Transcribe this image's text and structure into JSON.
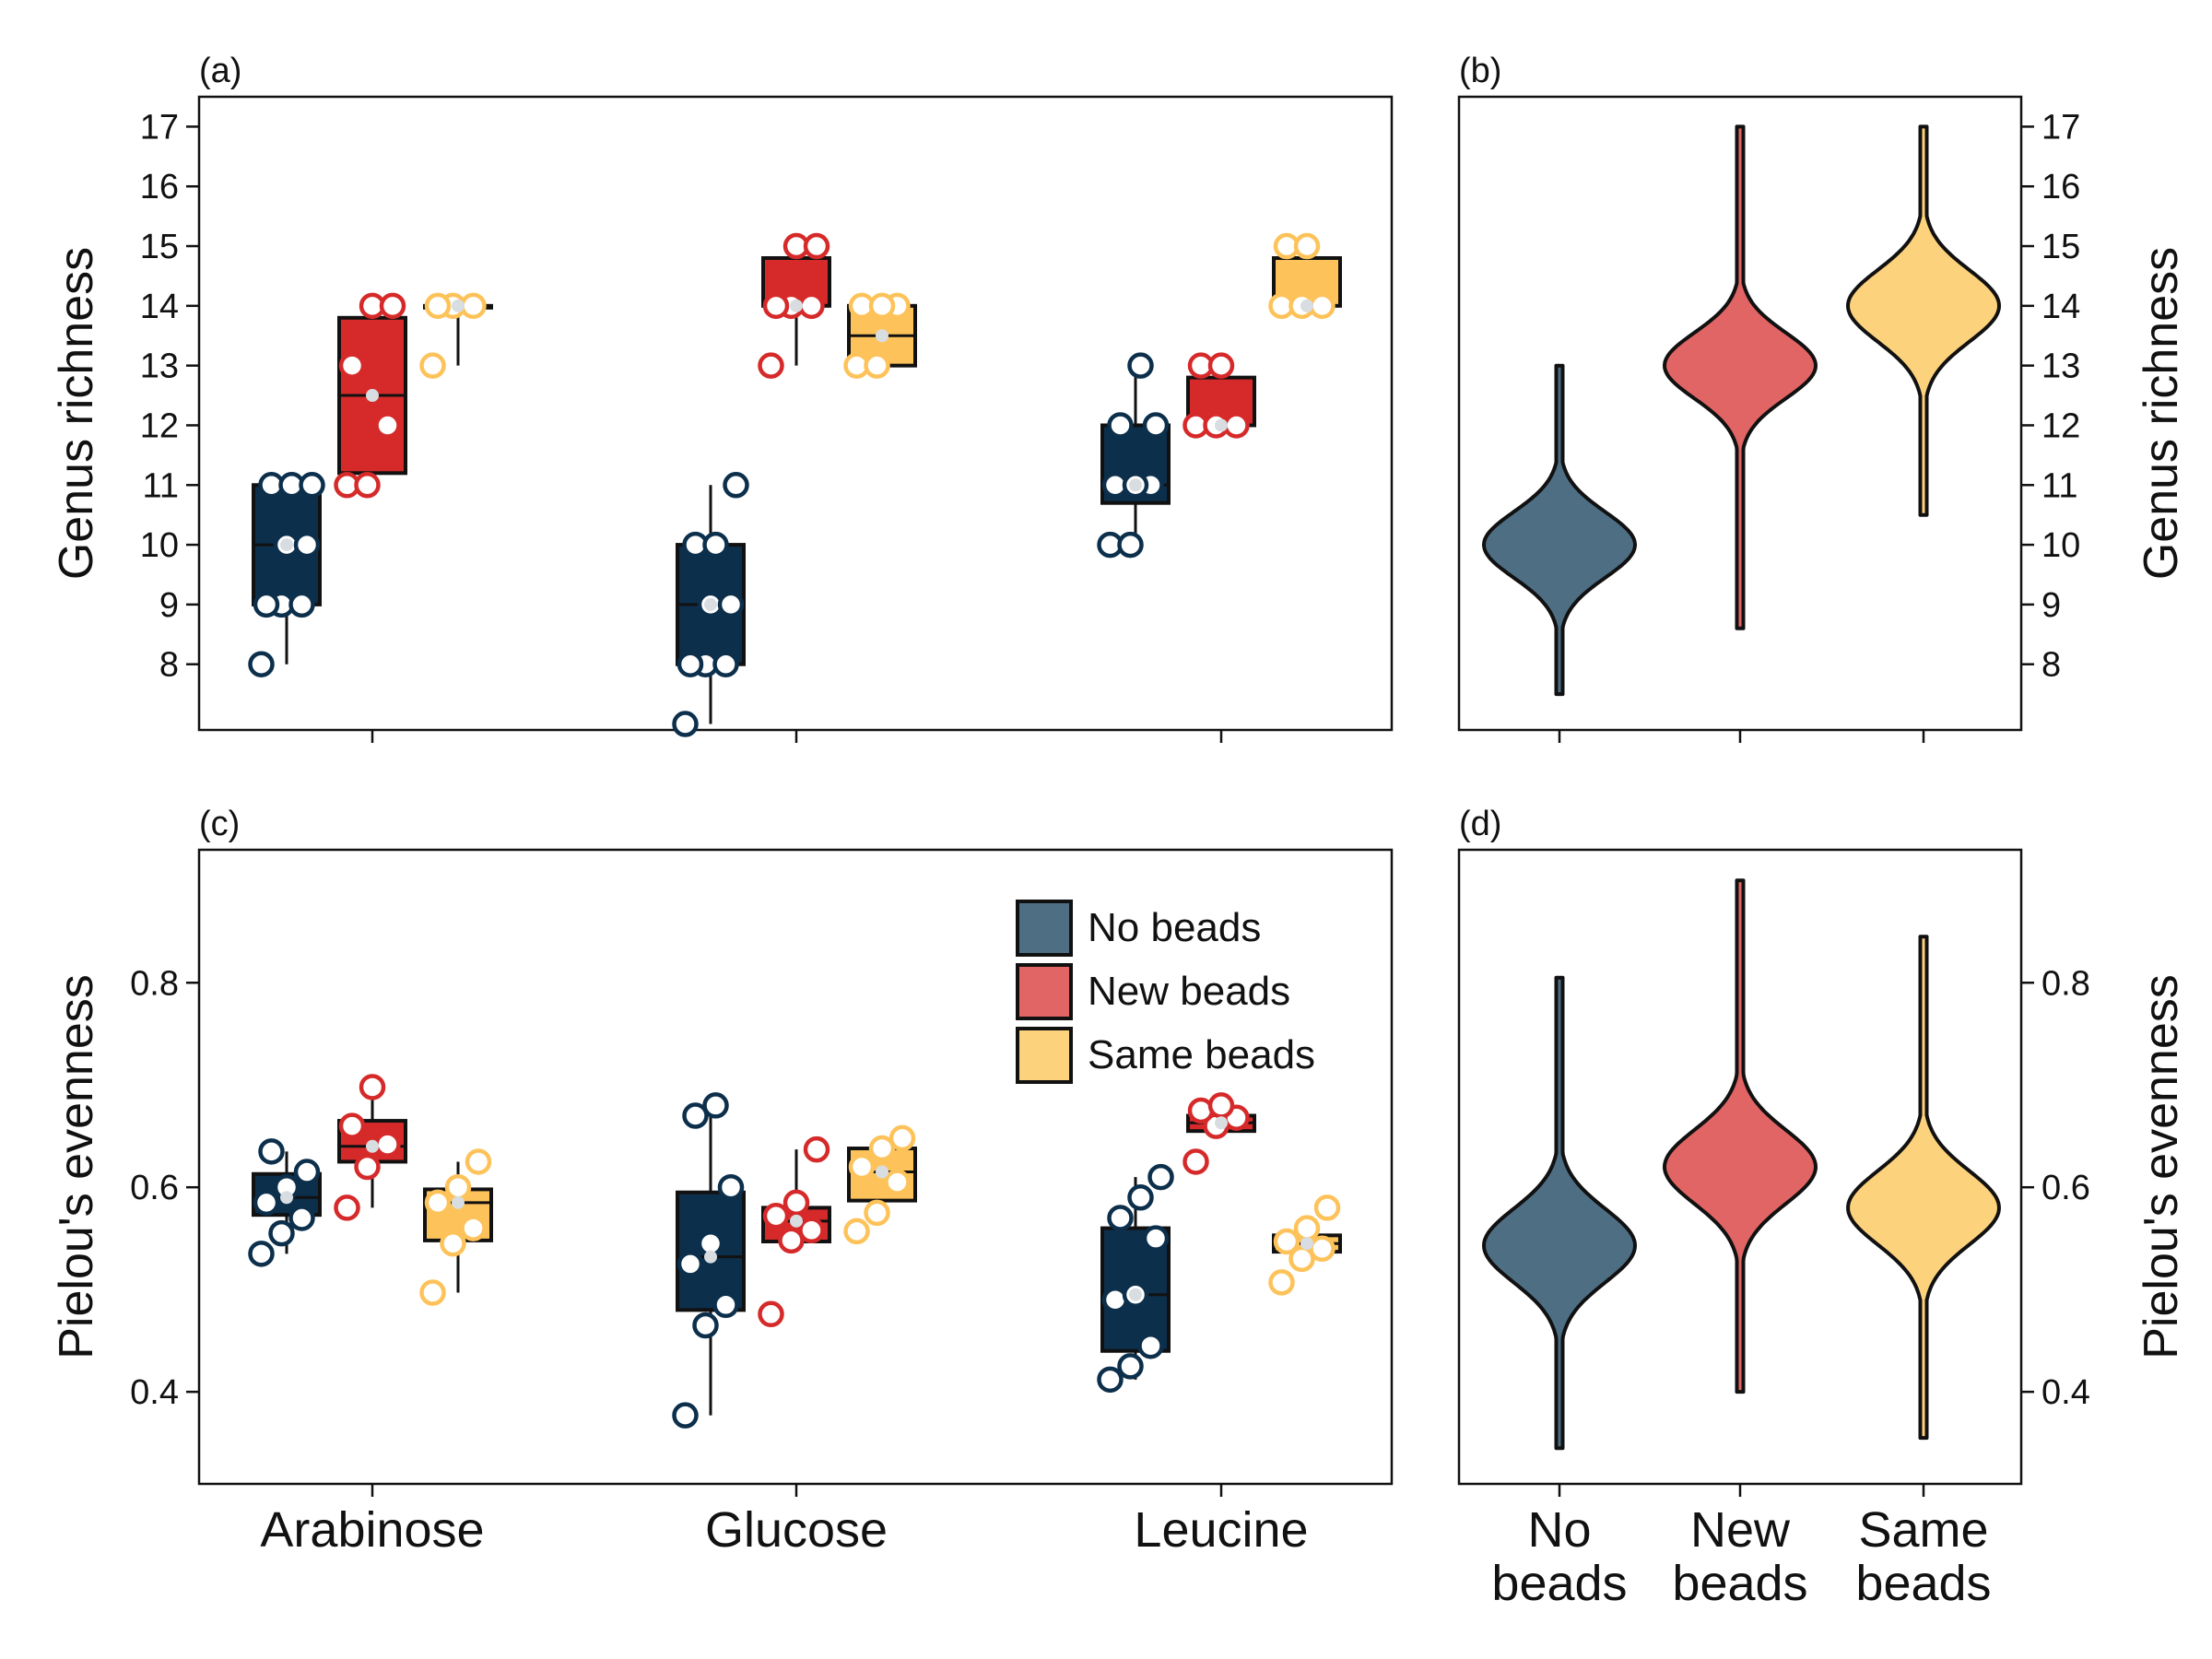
{
  "colors": {
    "no_beads": "#0c2f4c",
    "new_beads": "#d62a2a",
    "same_beads": "#fdc35a",
    "no_beads_violin": "#4e6e84",
    "new_beads_violin": "#e26565",
    "same_beads_violin": "#fdd27c",
    "median_point_fill": "#d8dde2"
  },
  "legend": {
    "entries": [
      "No beads",
      "New beads",
      "Same beads"
    ],
    "position": "upper-right of panel (c)"
  },
  "chart_data": [
    {
      "panel": "(a)",
      "type": "box",
      "ylabel": "Genus richness",
      "ylim": [
        6.9,
        17.5
      ],
      "yticks": [
        8,
        9,
        10,
        11,
        12,
        13,
        14,
        15,
        16,
        17
      ],
      "categories": [
        "Arabinose",
        "Glucose",
        "Leucine"
      ],
      "series": [
        {
          "name": "No beads",
          "boxes": [
            {
              "q1": 9,
              "median": 10,
              "q3": 11,
              "whisker_low": 8,
              "whisker_high": 11,
              "points": [
                8,
                9,
                9,
                9,
                10,
                10,
                11,
                11,
                11
              ]
            },
            {
              "q1": 8,
              "median": 9,
              "q3": 10,
              "whisker_low": 7,
              "whisker_high": 11,
              "points": [
                7,
                8,
                8,
                8,
                9,
                9,
                10,
                10,
                11
              ]
            },
            {
              "q1": 10.7,
              "median": 11,
              "q3": 12,
              "whisker_low": 10,
              "whisker_high": 13,
              "points": [
                10,
                10,
                11,
                11,
                11,
                12,
                12,
                13
              ]
            }
          ]
        },
        {
          "name": "New beads",
          "boxes": [
            {
              "q1": 11.2,
              "median": 12.5,
              "q3": 13.8,
              "whisker_low": 11,
              "whisker_high": 14,
              "points": [
                11,
                11,
                12,
                13,
                14,
                14
              ]
            },
            {
              "q1": 14,
              "median": 14,
              "q3": 14.8,
              "whisker_low": 13,
              "whisker_high": 15,
              "points": [
                13,
                14,
                14,
                14,
                15,
                15
              ]
            },
            {
              "q1": 12,
              "median": 12,
              "q3": 12.8,
              "whisker_low": 12,
              "whisker_high": 13,
              "points": [
                12,
                12,
                12,
                13,
                13
              ]
            }
          ]
        },
        {
          "name": "Same beads",
          "boxes": [
            {
              "q1": 14,
              "median": 14,
              "q3": 14,
              "whisker_low": 13,
              "whisker_high": 14,
              "points": [
                13,
                14,
                14,
                14
              ]
            },
            {
              "q1": 13,
              "median": 13.5,
              "q3": 14,
              "whisker_low": 13,
              "whisker_high": 14,
              "points": [
                13,
                13,
                14,
                14,
                14
              ]
            },
            {
              "q1": 14,
              "median": 14,
              "q3": 14.8,
              "whisker_low": 14,
              "whisker_high": 15,
              "points": [
                14,
                14,
                14,
                15,
                15
              ]
            }
          ]
        }
      ]
    },
    {
      "panel": "(b)",
      "type": "violin",
      "ylabel": "Genus richness",
      "ylim": [
        6.9,
        17.5
      ],
      "yticks": [
        8,
        9,
        10,
        11,
        12,
        13,
        14,
        15,
        16,
        17
      ],
      "categories": [
        "No beads",
        "New beads",
        "Same beads"
      ],
      "series": [
        {
          "name": "No beads",
          "center": 10,
          "spread": 0.55,
          "min": 7.5,
          "max": 13
        },
        {
          "name": "New beads",
          "center": 13,
          "spread": 0.55,
          "min": 8.6,
          "max": 17
        },
        {
          "name": "Same beads",
          "center": 14,
          "spread": 0.6,
          "min": 10.5,
          "max": 17
        }
      ]
    },
    {
      "panel": "(c)",
      "type": "box",
      "ylabel": "Pielou's evenness",
      "ylim": [
        0.31,
        0.93
      ],
      "yticks": [
        0.4,
        0.6,
        0.8
      ],
      "categories": [
        "Arabinose",
        "Glucose",
        "Leucine"
      ],
      "series": [
        {
          "name": "No beads",
          "boxes": [
            {
              "q1": 0.573,
              "median": 0.59,
              "q3": 0.613,
              "whisker_low": 0.535,
              "whisker_high": 0.635,
              "points": [
                0.535,
                0.555,
                0.57,
                0.585,
                0.6,
                0.615,
                0.635
              ]
            },
            {
              "q1": 0.48,
              "median": 0.532,
              "q3": 0.595,
              "whisker_low": 0.377,
              "whisker_high": 0.68,
              "points": [
                0.377,
                0.465,
                0.485,
                0.525,
                0.545,
                0.6,
                0.67,
                0.68
              ]
            },
            {
              "q1": 0.44,
              "median": 0.495,
              "q3": 0.56,
              "whisker_low": 0.412,
              "whisker_high": 0.61,
              "points": [
                0.412,
                0.425,
                0.445,
                0.49,
                0.495,
                0.55,
                0.57,
                0.59,
                0.61
              ]
            }
          ]
        },
        {
          "name": "New beads",
          "boxes": [
            {
              "q1": 0.625,
              "median": 0.64,
              "q3": 0.665,
              "whisker_low": 0.58,
              "whisker_high": 0.698,
              "points": [
                0.58,
                0.62,
                0.642,
                0.66,
                0.698
              ]
            },
            {
              "q1": 0.547,
              "median": 0.567,
              "q3": 0.58,
              "whisker_low": 0.547,
              "whisker_high": 0.637,
              "points": [
                0.476,
                0.548,
                0.558,
                0.572,
                0.585,
                0.637
              ]
            },
            {
              "q1": 0.655,
              "median": 0.663,
              "q3": 0.67,
              "whisker_low": 0.655,
              "whisker_high": 0.68,
              "points": [
                0.625,
                0.66,
                0.668,
                0.675,
                0.68
              ]
            }
          ]
        },
        {
          "name": "Same beads",
          "boxes": [
            {
              "q1": 0.548,
              "median": 0.585,
              "q3": 0.598,
              "whisker_low": 0.497,
              "whisker_high": 0.625,
              "points": [
                0.497,
                0.545,
                0.56,
                0.585,
                0.6,
                0.625
              ]
            },
            {
              "q1": 0.587,
              "median": 0.615,
              "q3": 0.638,
              "whisker_low": 0.587,
              "whisker_high": 0.648,
              "points": [
                0.557,
                0.575,
                0.605,
                0.62,
                0.638,
                0.648
              ]
            },
            {
              "q1": 0.537,
              "median": 0.545,
              "q3": 0.553,
              "whisker_low": 0.537,
              "whisker_high": 0.553,
              "points": [
                0.507,
                0.53,
                0.54,
                0.547,
                0.56,
                0.58
              ]
            }
          ]
        }
      ]
    },
    {
      "panel": "(d)",
      "type": "violin",
      "ylabel": "Pielou's evenness",
      "ylim": [
        0.31,
        0.93
      ],
      "yticks": [
        0.4,
        0.6,
        0.8
      ],
      "categories": [
        "No beads",
        "New beads",
        "Same beads"
      ],
      "series": [
        {
          "name": "No beads",
          "center": 0.543,
          "spread": 0.036,
          "min": 0.345,
          "max": 0.805
        },
        {
          "name": "New beads",
          "center": 0.62,
          "spread": 0.036,
          "min": 0.4,
          "max": 0.9
        },
        {
          "name": "Same beads",
          "center": 0.58,
          "spread": 0.036,
          "min": 0.355,
          "max": 0.845
        }
      ]
    }
  ]
}
